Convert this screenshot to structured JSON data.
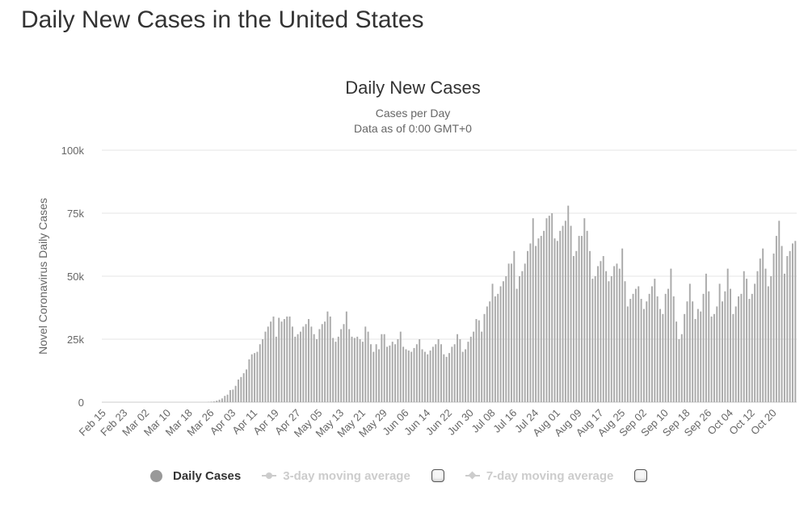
{
  "page": {
    "title": "Daily New Cases in the United States"
  },
  "colors": {
    "bar": "#aaaaaa",
    "grid": "#e6e6e6",
    "axis_text": "#666666",
    "title_text": "#333333"
  },
  "legend": {
    "items": [
      {
        "label": "Daily Cases",
        "enabled": true,
        "marker": "circle"
      },
      {
        "label": "3-day moving average",
        "enabled": false,
        "marker": "line-circle"
      },
      {
        "label": "7-day moving average",
        "enabled": false,
        "marker": "line-diamond"
      }
    ]
  },
  "chart_data": {
    "type": "bar",
    "title": "Daily New Cases",
    "subtitle_lines": [
      "Cases per Day",
      "Data as of 0:00 GMT+0"
    ],
    "ylabel": "Novel Coronavirus Daily Cases",
    "xlabel": "",
    "ylim": [
      0,
      100000
    ],
    "yticks": [
      0,
      25000,
      50000,
      75000,
      100000
    ],
    "ytick_labels": [
      "0",
      "25k",
      "50k",
      "75k",
      "100k"
    ],
    "x_start": "Feb 15",
    "x_end": "Oct 22",
    "x_tick_labels": [
      "Feb 15",
      "Feb 23",
      "Mar 02",
      "Mar 10",
      "Mar 18",
      "Mar 26",
      "Apr 03",
      "Apr 11",
      "Apr 19",
      "Apr 27",
      "May 05",
      "May 13",
      "May 21",
      "May 29",
      "Jun 06",
      "Jun 14",
      "Jun 22",
      "Jun 30",
      "Jul 08",
      "Jul 16",
      "Jul 24",
      "Aug 01",
      "Aug 09",
      "Aug 17",
      "Aug 25",
      "Sep 02",
      "Sep 10",
      "Sep 18",
      "Sep 26",
      "Oct 04",
      "Oct 12",
      "Oct 20"
    ],
    "x_tick_interval_days": 8,
    "grid": true,
    "legend_position": "bottom",
    "series": [
      {
        "name": "Daily Cases",
        "values": [
          0,
          0,
          0,
          0,
          0,
          0,
          0,
          0,
          0,
          0,
          0,
          0,
          0,
          0,
          0,
          0,
          0,
          0,
          0,
          0,
          0,
          0,
          0,
          0,
          0,
          0,
          0,
          0,
          0,
          0,
          0,
          0,
          0,
          0,
          0,
          0,
          0,
          0,
          0,
          100,
          200,
          300,
          600,
          1000,
          1500,
          2500,
          3000,
          4800,
          5000,
          6500,
          9000,
          10000,
          11500,
          13000,
          17000,
          19000,
          19500,
          20000,
          23000,
          25000,
          28000,
          30000,
          32000,
          34000,
          26000,
          33500,
          32000,
          33000,
          34000,
          34000,
          30000,
          26000,
          27000,
          28000,
          30000,
          31000,
          33000,
          30000,
          27000,
          25000,
          29000,
          31000,
          32000,
          36000,
          34000,
          25500,
          24000,
          26000,
          29000,
          31000,
          36000,
          29000,
          26000,
          25500,
          26000,
          25000,
          24000,
          30000,
          28000,
          23000,
          20000,
          23000,
          21000,
          27000,
          27000,
          22000,
          22500,
          24000,
          23000,
          25000,
          28000,
          22000,
          21000,
          20500,
          20000,
          21500,
          23000,
          25000,
          21000,
          20000,
          19000,
          20500,
          22000,
          23000,
          25000,
          23000,
          19000,
          18000,
          19500,
          22000,
          23000,
          27000,
          25000,
          20000,
          21000,
          24000,
          26000,
          28000,
          33000,
          32500,
          28000,
          35000,
          38000,
          40000,
          47000,
          42000,
          43000,
          46000,
          48000,
          50000,
          55000,
          55000,
          60000,
          45000,
          50000,
          52000,
          55000,
          60000,
          63000,
          73000,
          62000,
          65000,
          66000,
          68000,
          73000,
          74000,
          75000,
          65000,
          64000,
          68000,
          70000,
          72000,
          78000,
          70000,
          58000,
          60000,
          66000,
          66000,
          73000,
          68000,
          60000,
          49000,
          50000,
          54000,
          56000,
          58000,
          52000,
          48000,
          50000,
          54000,
          55000,
          53000,
          61000,
          48000,
          38000,
          41000,
          43000,
          45000,
          46000,
          41000,
          37000,
          40000,
          43000,
          46000,
          49000,
          42000,
          37000,
          35000,
          43000,
          45000,
          53000,
          42000,
          32000,
          25000,
          27000,
          35000,
          40000,
          47000,
          40000,
          33000,
          37000,
          36000,
          43000,
          51000,
          44000,
          34000,
          35000,
          38000,
          47000,
          40000,
          44000,
          53000,
          45000,
          35000,
          38000,
          42000,
          43000,
          52000,
          49000,
          41000,
          43000,
          47000,
          52000,
          57000,
          61000,
          53000,
          46000,
          50000,
          59000,
          66000,
          72000,
          62000,
          51000,
          58000,
          60000,
          63000,
          64000
        ]
      }
    ]
  }
}
